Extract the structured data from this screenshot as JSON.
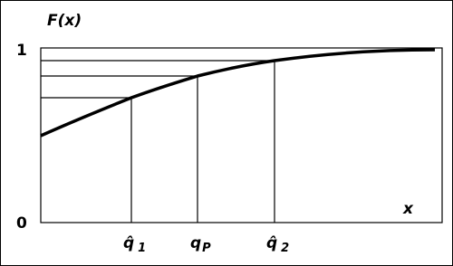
{
  "y_axis_label": "F(x)",
  "x_axis_label": "x",
  "y_labels": [
    "1",
    "0"
  ],
  "x_labels": [
    {
      "symbol": "q̂",
      "subscript": "1"
    },
    {
      "symbol": "q",
      "subscript": "P"
    },
    {
      "symbol": "q̂",
      "subscript": "2"
    }
  ]
}
